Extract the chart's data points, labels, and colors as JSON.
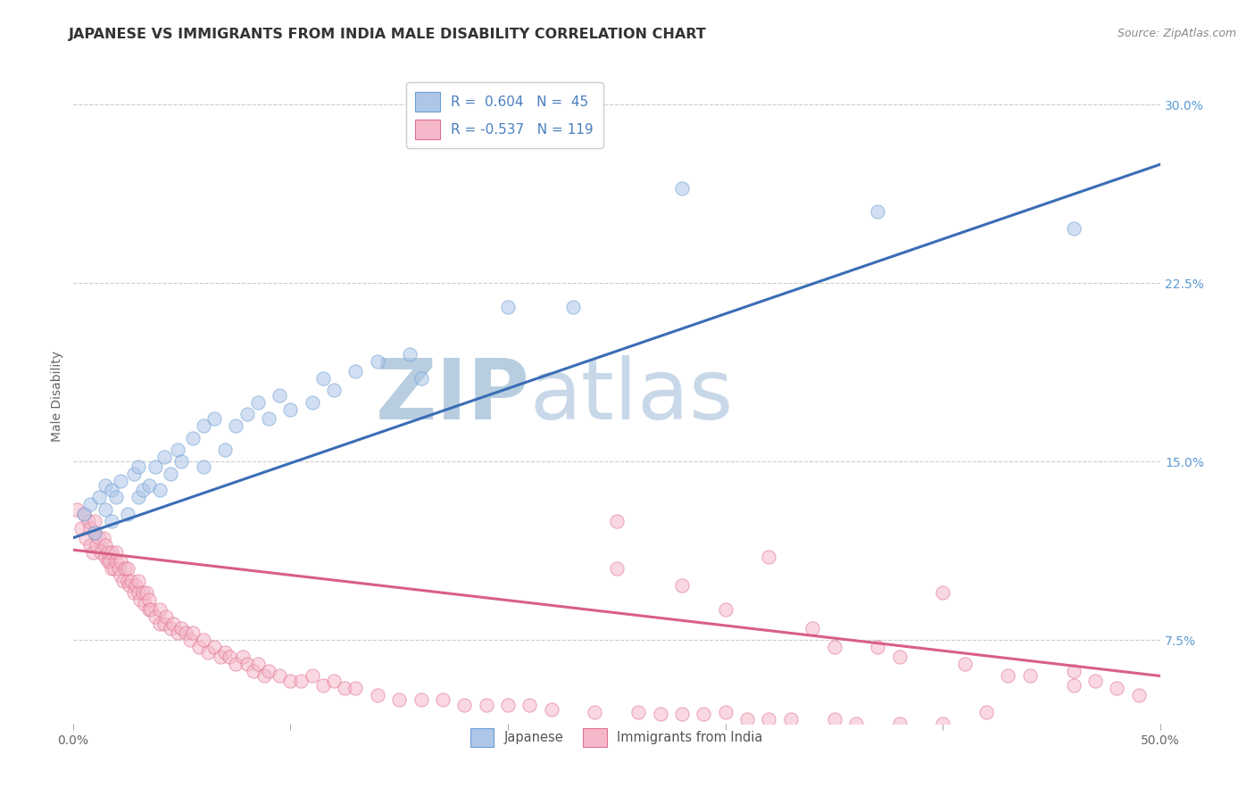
{
  "title": "JAPANESE VS IMMIGRANTS FROM INDIA MALE DISABILITY CORRELATION CHART",
  "source": "Source: ZipAtlas.com",
  "ylabel": "Male Disability",
  "watermark": "ZIPatlas",
  "xlim": [
    0.0,
    0.5
  ],
  "ylim": [
    0.04,
    0.315
  ],
  "xticks": [
    0.0,
    0.1,
    0.2,
    0.3,
    0.4,
    0.5
  ],
  "yticks": [
    0.075,
    0.15,
    0.225,
    0.3
  ],
  "blue_scatter_x": [
    0.005,
    0.008,
    0.01,
    0.012,
    0.015,
    0.015,
    0.018,
    0.018,
    0.02,
    0.022,
    0.025,
    0.028,
    0.03,
    0.03,
    0.032,
    0.035,
    0.038,
    0.04,
    0.042,
    0.045,
    0.048,
    0.05,
    0.055,
    0.06,
    0.06,
    0.065,
    0.07,
    0.075,
    0.08,
    0.085,
    0.09,
    0.095,
    0.1,
    0.11,
    0.115,
    0.12,
    0.13,
    0.14,
    0.155,
    0.16,
    0.2,
    0.23,
    0.28,
    0.37,
    0.46
  ],
  "blue_scatter_y": [
    0.128,
    0.132,
    0.12,
    0.135,
    0.13,
    0.14,
    0.125,
    0.138,
    0.135,
    0.142,
    0.128,
    0.145,
    0.135,
    0.148,
    0.138,
    0.14,
    0.148,
    0.138,
    0.152,
    0.145,
    0.155,
    0.15,
    0.16,
    0.148,
    0.165,
    0.168,
    0.155,
    0.165,
    0.17,
    0.175,
    0.168,
    0.178,
    0.172,
    0.175,
    0.185,
    0.18,
    0.188,
    0.192,
    0.195,
    0.185,
    0.215,
    0.215,
    0.265,
    0.255,
    0.248
  ],
  "pink_scatter_x": [
    0.002,
    0.004,
    0.005,
    0.006,
    0.007,
    0.008,
    0.008,
    0.009,
    0.01,
    0.01,
    0.011,
    0.012,
    0.013,
    0.014,
    0.015,
    0.015,
    0.016,
    0.016,
    0.017,
    0.018,
    0.018,
    0.019,
    0.02,
    0.02,
    0.021,
    0.022,
    0.022,
    0.023,
    0.024,
    0.025,
    0.025,
    0.026,
    0.027,
    0.028,
    0.029,
    0.03,
    0.03,
    0.031,
    0.032,
    0.033,
    0.034,
    0.035,
    0.035,
    0.036,
    0.038,
    0.04,
    0.04,
    0.042,
    0.043,
    0.045,
    0.046,
    0.048,
    0.05,
    0.052,
    0.054,
    0.055,
    0.058,
    0.06,
    0.062,
    0.065,
    0.068,
    0.07,
    0.072,
    0.075,
    0.078,
    0.08,
    0.083,
    0.085,
    0.088,
    0.09,
    0.095,
    0.1,
    0.105,
    0.11,
    0.115,
    0.12,
    0.125,
    0.13,
    0.14,
    0.15,
    0.16,
    0.17,
    0.18,
    0.19,
    0.2,
    0.21,
    0.22,
    0.24,
    0.26,
    0.27,
    0.28,
    0.29,
    0.3,
    0.31,
    0.32,
    0.33,
    0.35,
    0.36,
    0.38,
    0.4,
    0.25,
    0.32,
    0.35,
    0.38,
    0.4,
    0.42,
    0.44,
    0.46,
    0.47,
    0.48,
    0.49,
    0.25,
    0.28,
    0.3,
    0.34,
    0.37,
    0.41,
    0.43,
    0.46
  ],
  "pink_scatter_y": [
    0.13,
    0.122,
    0.128,
    0.118,
    0.125,
    0.115,
    0.122,
    0.112,
    0.12,
    0.125,
    0.115,
    0.118,
    0.112,
    0.118,
    0.11,
    0.115,
    0.108,
    0.112,
    0.108,
    0.105,
    0.112,
    0.105,
    0.108,
    0.112,
    0.105,
    0.102,
    0.108,
    0.1,
    0.105,
    0.1,
    0.105,
    0.098,
    0.1,
    0.095,
    0.098,
    0.095,
    0.1,
    0.092,
    0.095,
    0.09,
    0.095,
    0.088,
    0.092,
    0.088,
    0.085,
    0.082,
    0.088,
    0.082,
    0.085,
    0.08,
    0.082,
    0.078,
    0.08,
    0.078,
    0.075,
    0.078,
    0.072,
    0.075,
    0.07,
    0.072,
    0.068,
    0.07,
    0.068,
    0.065,
    0.068,
    0.065,
    0.062,
    0.065,
    0.06,
    0.062,
    0.06,
    0.058,
    0.058,
    0.06,
    0.056,
    0.058,
    0.055,
    0.055,
    0.052,
    0.05,
    0.05,
    0.05,
    0.048,
    0.048,
    0.048,
    0.048,
    0.046,
    0.045,
    0.045,
    0.044,
    0.044,
    0.044,
    0.045,
    0.042,
    0.042,
    0.042,
    0.042,
    0.04,
    0.04,
    0.04,
    0.105,
    0.11,
    0.072,
    0.068,
    0.095,
    0.045,
    0.06,
    0.062,
    0.058,
    0.055,
    0.052,
    0.125,
    0.098,
    0.088,
    0.08,
    0.072,
    0.065,
    0.06,
    0.056
  ],
  "blue_line_x": [
    0.0,
    0.5
  ],
  "blue_line_y": [
    0.118,
    0.275
  ],
  "pink_line_x": [
    0.0,
    0.5
  ],
  "pink_line_y": [
    0.113,
    0.06
  ],
  "scatter_size": 120,
  "scatter_alpha": 0.55,
  "scatter_blue_color": "#aec6e8",
  "scatter_blue_edge": "#6b9fd4",
  "scatter_pink_color": "#f5b8cb",
  "scatter_pink_edge": "#e0708e",
  "line_blue_color": "#3a6db5",
  "line_pink_color": "#d95f85",
  "grid_color": "#cccccc",
  "background_color": "#ffffff",
  "title_color": "#333333",
  "axis_label_color": "#666666",
  "tick_color_right": "#5b9bd5",
  "watermark_color": "#ccd8e8",
  "title_fontsize": 11.5,
  "label_fontsize": 10,
  "tick_fontsize": 10,
  "legend_label_blue": "R =  0.604   N =  45",
  "legend_label_pink": "R = -0.537   N = 119",
  "bottom_legend_japanese": "Japanese",
  "bottom_legend_india": "Immigrants from India"
}
